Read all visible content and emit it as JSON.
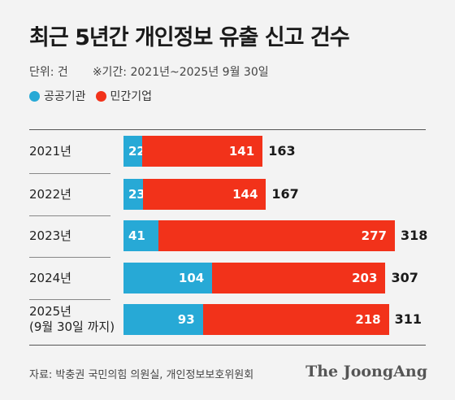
{
  "title": "최근 5년간 개인정보 유출 신고 건수",
  "unit_note": "단위: 건",
  "period_note": "※기간: 2021년~2025년 9월 30일",
  "colors": {
    "public": "#27a9d6",
    "private": "#f2321a"
  },
  "legend": [
    "공공기관",
    "민간기업"
  ],
  "chart_data": {
    "type": "bar",
    "orientation": "horizontal",
    "stacked": true,
    "categories": [
      "2021년",
      "2022년",
      "2023년",
      "2024년",
      "2025년 (9월 30일 까지)"
    ],
    "category_lines": [
      [
        "2021년"
      ],
      [
        "2022년"
      ],
      [
        "2023년"
      ],
      [
        "2024년"
      ],
      [
        "2025년",
        "(9월 30일 까지)"
      ]
    ],
    "series": [
      {
        "name": "공공기관",
        "values": [
          22,
          23,
          41,
          104,
          93
        ]
      },
      {
        "name": "민간기업",
        "values": [
          141,
          144,
          277,
          203,
          218
        ]
      }
    ],
    "totals": [
      163,
      167,
      318,
      307,
      311
    ],
    "xlim": [
      0,
      318
    ]
  },
  "source": "자료: 박충권 국민의힘 의원실, 개인정보보호위원회",
  "logo": "The JoongAng"
}
